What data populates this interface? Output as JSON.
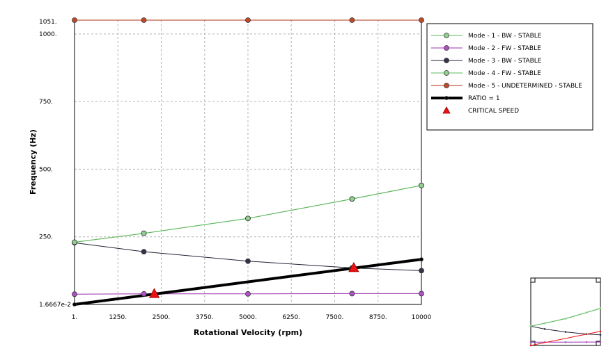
{
  "chart_data": {
    "type": "line",
    "xlabel": "Rotational Velocity (rpm)",
    "ylabel": "Frequency (Hz)",
    "xlim": [
      1,
      10000
    ],
    "ylim": [
      0.016667,
      1051
    ],
    "x_tick_labels": [
      "1.",
      "1250.",
      "2500.",
      "3750.",
      "5000.",
      "6250.",
      "7500.",
      "8750.",
      "10000"
    ],
    "x_tick_values": [
      1,
      1250,
      2500,
      3750,
      5000,
      6250,
      7500,
      8750,
      10000
    ],
    "y_tick_labels": [
      "1.6667e-2",
      "250.",
      "500.",
      "750.",
      "1000.",
      "1051."
    ],
    "y_tick_values": [
      0.016667,
      250,
      500,
      750,
      1000,
      1051
    ],
    "grid": true,
    "legend_position": "right",
    "series": [
      {
        "name": "Mode - 1  - BW  - STABLE",
        "color": "#5cb85c",
        "marker": "#8fd08f",
        "x": [
          1,
          2000,
          5000,
          8000,
          10000
        ],
        "y": [
          230,
          263,
          318,
          390,
          440
        ]
      },
      {
        "name": "Mode - 2  - FW  - STABLE",
        "color": "#9b30b0",
        "marker": "#b050c8",
        "x": [
          1,
          2000,
          5000,
          8000,
          10000
        ],
        "y": [
          38,
          39,
          39,
          40,
          40
        ]
      },
      {
        "name": "Mode - 3  - BW  - STABLE",
        "color": "#222233",
        "marker": "#33334a",
        "x": [
          1,
          2000,
          5000,
          8000,
          10000
        ],
        "y": [
          228,
          195,
          160,
          135,
          125
        ]
      },
      {
        "name": "Mode - 4  - FW  - STABLE",
        "color": "#5cb85c",
        "marker": "#8fd08f",
        "x": [
          1,
          2000,
          5000,
          8000,
          10000
        ],
        "y": [
          230,
          263,
          318,
          390,
          440
        ]
      },
      {
        "name": "Mode - 5  - UNDETERMINED  - STABLE",
        "color": "#b03010",
        "marker": "#c04a28",
        "x": [
          1,
          2000,
          5000,
          8000,
          10000
        ],
        "y": [
          1051,
          1051,
          1051,
          1051,
          1051
        ]
      },
      {
        "name": "RATIO = 1",
        "color": "#000000",
        "marker": "#000000",
        "width": 4,
        "x": [
          1,
          10000
        ],
        "y": [
          0.016667,
          166.67
        ]
      }
    ],
    "critical_speeds": {
      "name": "CRITICAL SPEED",
      "color": "#ee1111",
      "x": [
        2300,
        8050
      ],
      "y": [
        38,
        134
      ]
    }
  }
}
